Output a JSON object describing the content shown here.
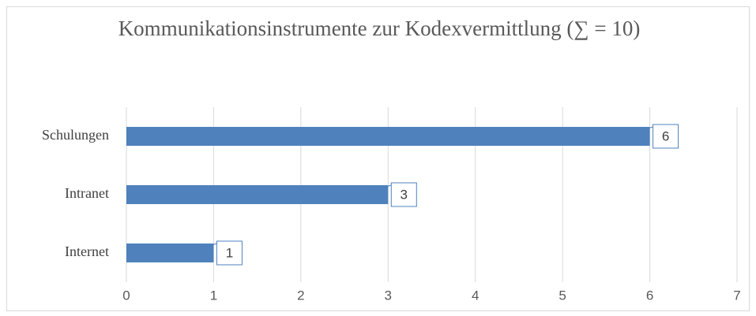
{
  "chart_data": {
    "type": "bar",
    "orientation": "horizontal",
    "title": "Kommunikationsinstrumente zur Kodexvermittlung (∑ = 10)",
    "categories": [
      "Internet",
      "Intranet",
      "Schulungen"
    ],
    "values": [
      1,
      3,
      6
    ],
    "color": "#4f81bd",
    "xlim": [
      0,
      7
    ],
    "xticks": [
      0,
      1,
      2,
      3,
      4,
      5,
      6,
      7
    ],
    "grid": true
  }
}
